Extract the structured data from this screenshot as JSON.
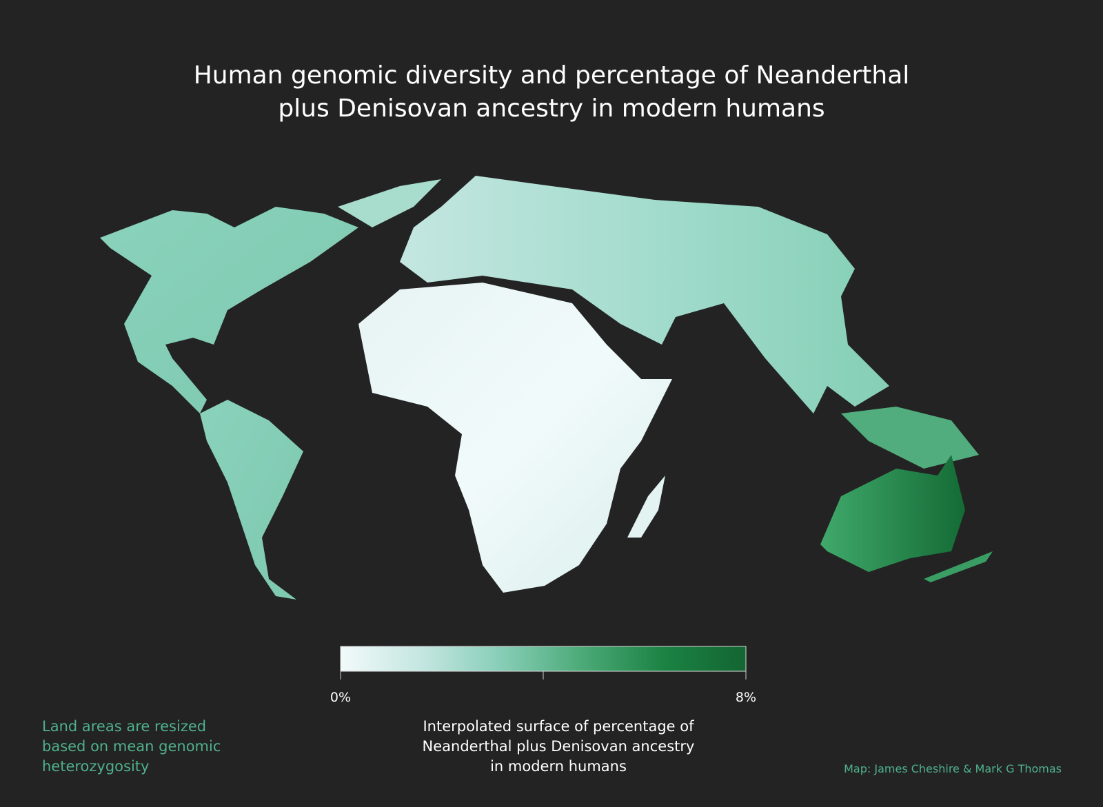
{
  "title": "Human genomic diversity and percentage of Neanderthal plus Denisovan ancestry in modern humans",
  "legend": {
    "range": [
      0,
      8
    ],
    "ticks": [
      {
        "value": 0,
        "label": "0%"
      },
      {
        "value": 4,
        "label": null
      },
      {
        "value": 8,
        "label": "8%"
      }
    ],
    "colors": [
      "#f2fafa",
      "#c4e6e1",
      "#86cdb6",
      "#4aa976",
      "#1b8243",
      "#136532"
    ],
    "caption": "Interpolated surface of percentage of Neanderthal plus Denisovan ancestry in modern humans"
  },
  "note": "Land areas are resized based on mean genomic heterozygosity",
  "credit": "Map: James Cheshire & Mark G Thomas"
}
